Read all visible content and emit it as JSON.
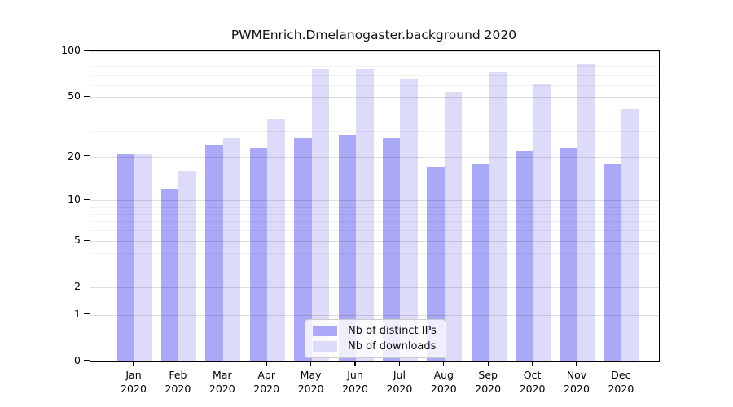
{
  "colors": {
    "bar_ips": "#a9a9f7",
    "bar_downloads": "#dcdcfa"
  },
  "chart_data": {
    "type": "bar",
    "title": "PWMEnrich.Dmelanogaster.background 2020",
    "xlabel": "",
    "ylabel": "",
    "scale": "log1p",
    "ylim": [
      0,
      100
    ],
    "grid": true,
    "legend_position": "bottom-center",
    "year": "2020",
    "months": [
      "Jan",
      "Feb",
      "Mar",
      "Apr",
      "May",
      "Jun",
      "Jul",
      "Aug",
      "Sep",
      "Oct",
      "Nov",
      "Dec"
    ],
    "categories": [
      "Jan 2020",
      "Feb 2020",
      "Mar 2020",
      "Apr 2020",
      "May 2020",
      "Jun 2020",
      "Jul 2020",
      "Aug 2020",
      "Sep 2020",
      "Oct 2020",
      "Nov 2020",
      "Dec 2020"
    ],
    "y_ticks": [
      100,
      50,
      20,
      10,
      5,
      2,
      1,
      0
    ],
    "y_minor_ticks": [
      3,
      4,
      6,
      7,
      8,
      9,
      30,
      40,
      60,
      70,
      80,
      90
    ],
    "series": [
      {
        "key": "ips",
        "name": "Nb of distinct IPs",
        "values": [
          21,
          12,
          24,
          23,
          27,
          28,
          27,
          17,
          18,
          22,
          23,
          18
        ]
      },
      {
        "key": "downloads",
        "name": "Nb of downloads",
        "values": [
          21,
          16,
          27,
          36,
          76,
          76,
          66,
          54,
          73,
          61,
          82,
          42
        ]
      }
    ]
  }
}
